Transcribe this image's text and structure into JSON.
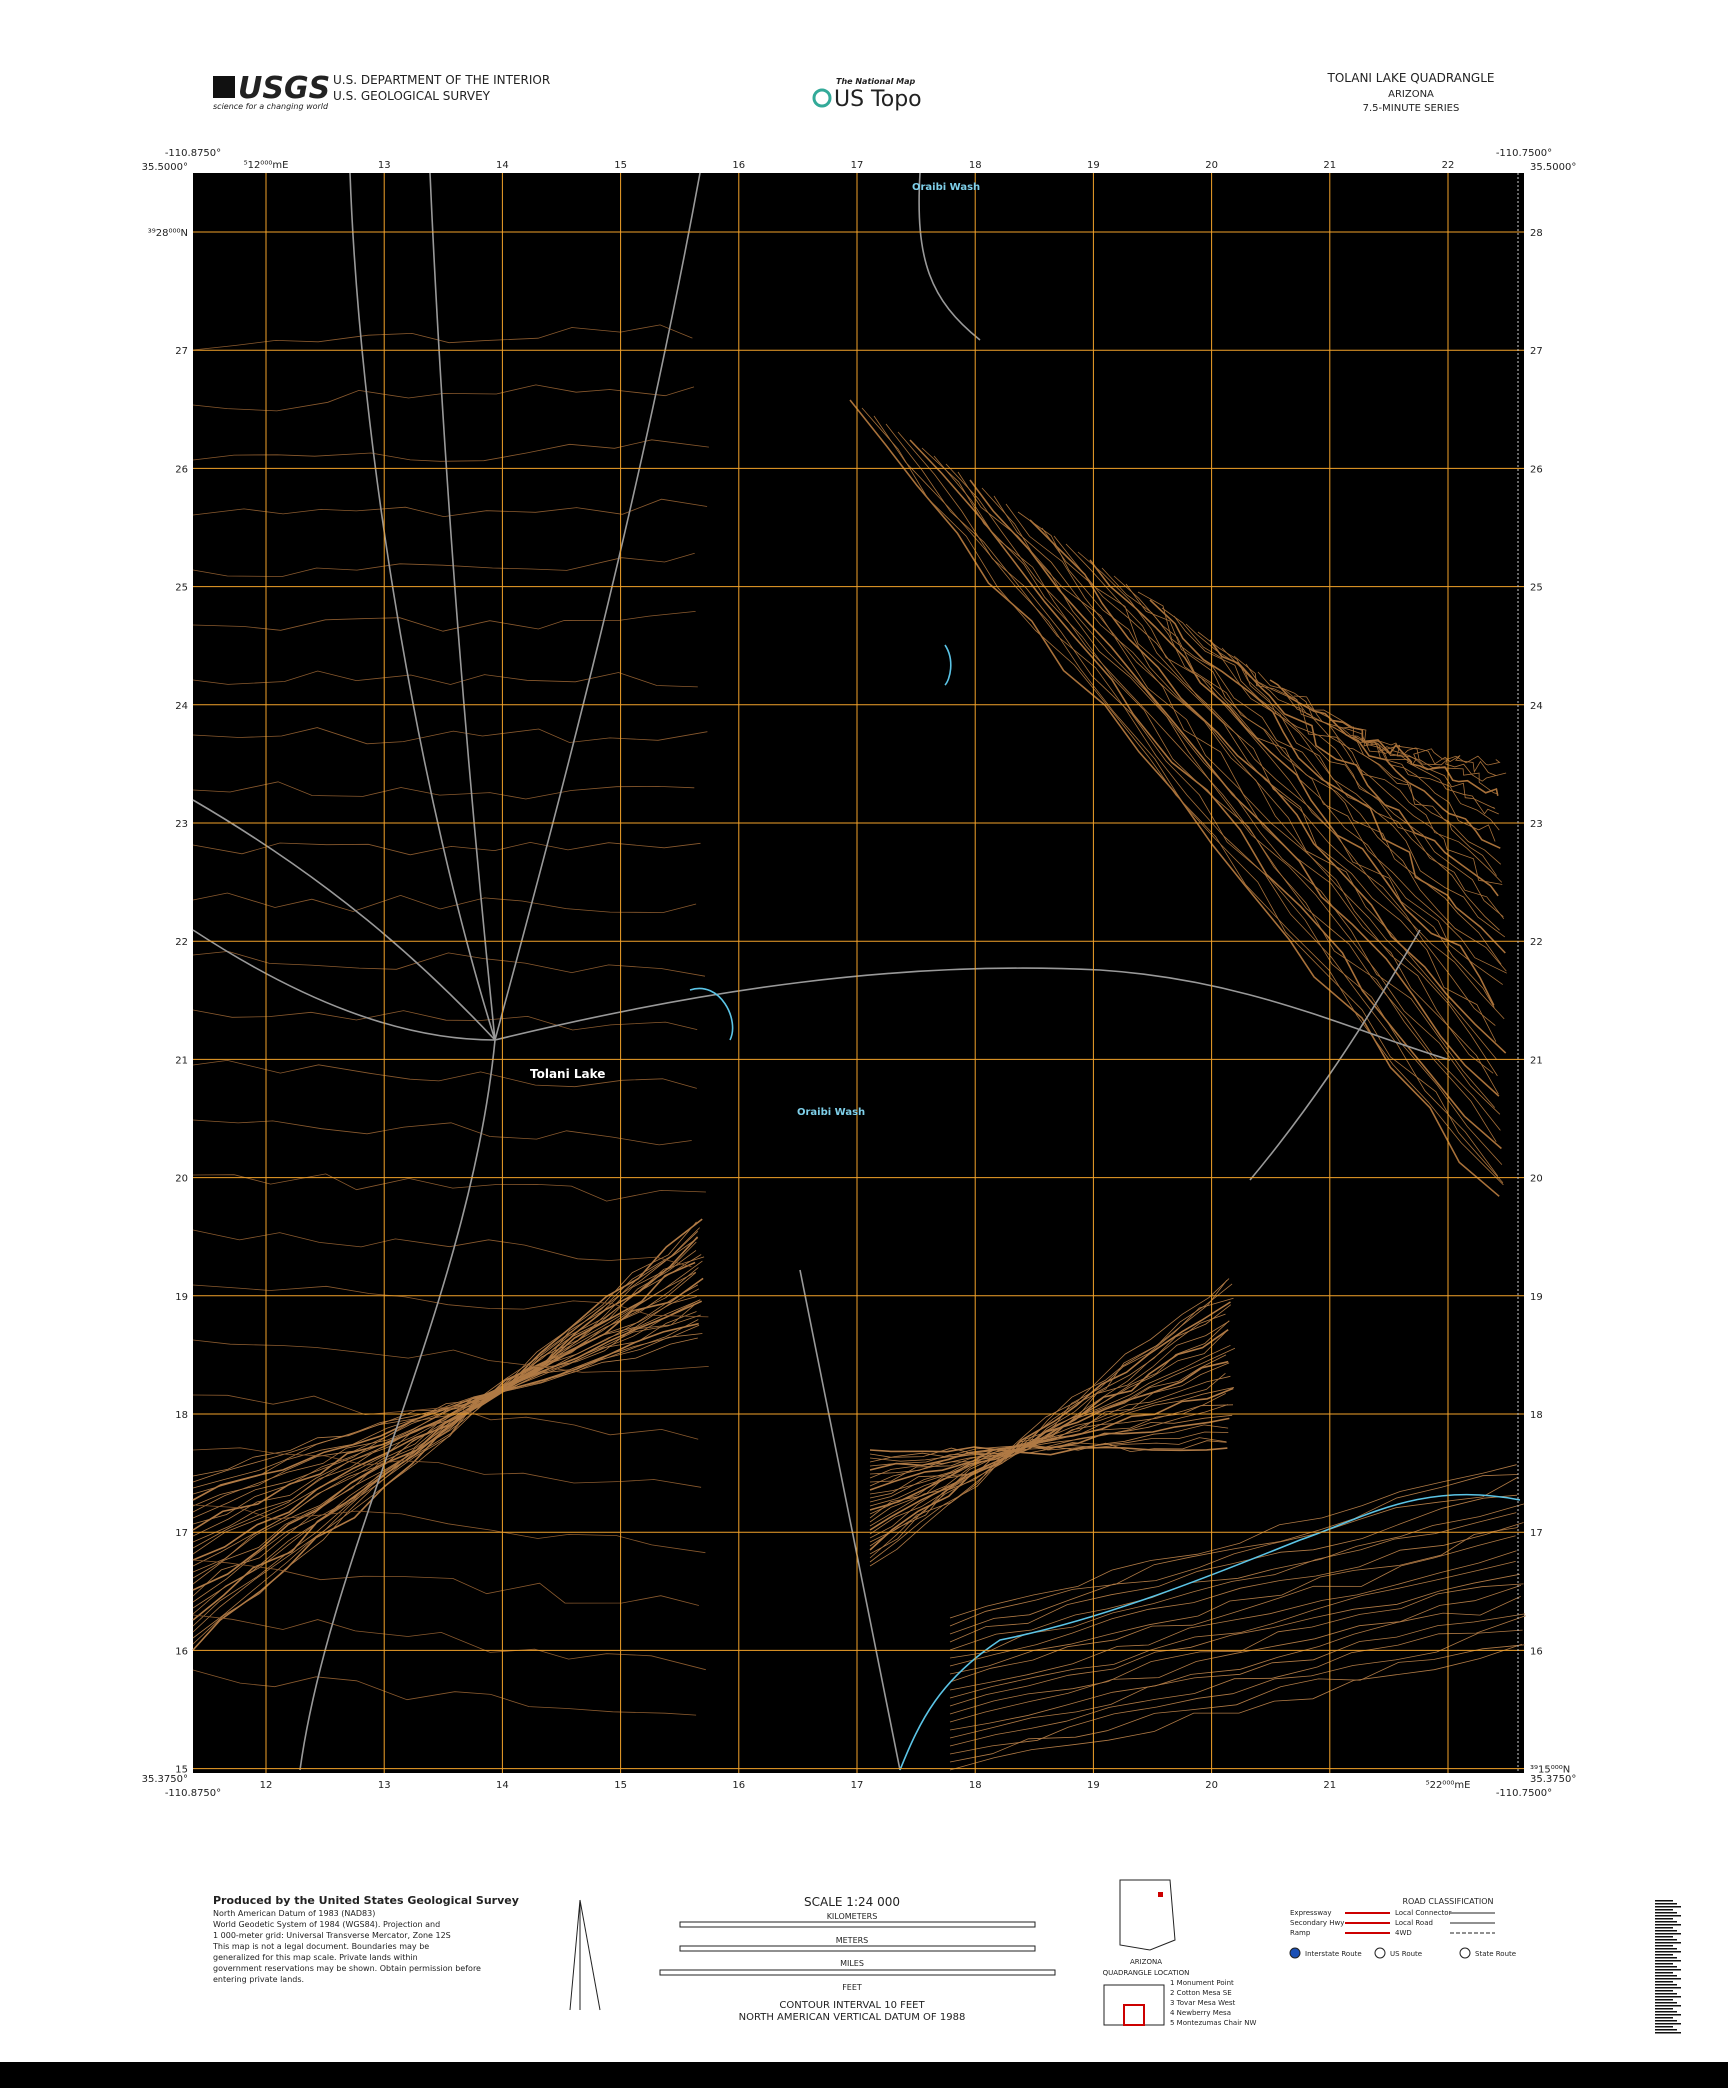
{
  "header": {
    "logo": "USGS",
    "tagline": "science for a changing world",
    "agency": [
      "U.S. DEPARTMENT OF THE INTERIOR",
      "U.S. GEOLOGICAL SURVEY"
    ],
    "product_small": "The National Map",
    "product": "US Topo",
    "title": "TOLANI LAKE QUADRANGLE",
    "state": "ARIZONA",
    "series": "7.5-MINUTE SERIES"
  },
  "corners": {
    "top_left_lon": "-110.8750°",
    "top_left_lat": "35.5000°",
    "top_right_lon": "-110.7500°",
    "top_right_lat": "35.5000°",
    "bottom_left_lat": "35.3750°",
    "bottom_left_lon": "-110.8750°",
    "bottom_right_lat": "35.3750°",
    "bottom_right_lon": "-110.7500°"
  },
  "grid": {
    "top": [
      "⁵12⁰⁰⁰mE",
      "13",
      "14",
      "15",
      "16",
      "17",
      "18",
      "19",
      "20",
      "21",
      "22"
    ],
    "bottom": [
      "12",
      "13",
      "14",
      "15",
      "16",
      "17",
      "18",
      "19",
      "20",
      "21",
      "⁵22⁰⁰⁰mE"
    ],
    "left": [
      "³⁹28⁰⁰⁰N",
      "27",
      "26",
      "25",
      "24",
      "23",
      "22",
      "21",
      "20",
      "19",
      "18",
      "17",
      "16",
      "15"
    ],
    "right": [
      "28",
      "27",
      "26",
      "25",
      "24",
      "23",
      "22",
      "21",
      "20",
      "19",
      "18",
      "17",
      "16",
      "³⁹15⁰⁰⁰N"
    ]
  },
  "places": {
    "town": "Tolani Lake",
    "wash_north": "Oraibi Wash",
    "wash_mid": "Oraibi Wash"
  },
  "footer": {
    "producer": "Produced by the United States Geological Survey",
    "notes": [
      "North American Datum of 1983 (NAD83)",
      "World Geodetic System of 1984 (WGS84). Projection and",
      "1 000-meter grid: Universal Transverse Mercator, Zone 12S",
      "This map is not a legal document. Boundaries may be",
      "generalized for this map scale. Private lands within",
      "government reservations may be shown. Obtain permission before",
      "entering private lands."
    ],
    "scale": "SCALE 1:24 000",
    "km": "KILOMETERS",
    "meters": "METERS",
    "miles": "MILES",
    "feet": "FEET",
    "contour": "CONTOUR INTERVAL 10 FEET",
    "datum": "NORTH AMERICAN VERTICAL DATUM OF 1988",
    "road_title": "ROAD CLASSIFICATION",
    "roads": [
      "Expressway",
      "Secondary Hwy",
      "Ramp",
      "Local Connector",
      "Local Road",
      "4WD"
    ],
    "routes": [
      "Interstate Route",
      "US Route",
      "State Route"
    ],
    "location_state": "ARIZONA",
    "location_label": "QUADRANGLE LOCATION",
    "adjoining": [
      "1 Monument Point",
      "2 Cotton Mesa SE",
      "3 Tovar Mesa West",
      "4 Newberry Mesa",
      "5 Montezumas Chair NW"
    ]
  }
}
